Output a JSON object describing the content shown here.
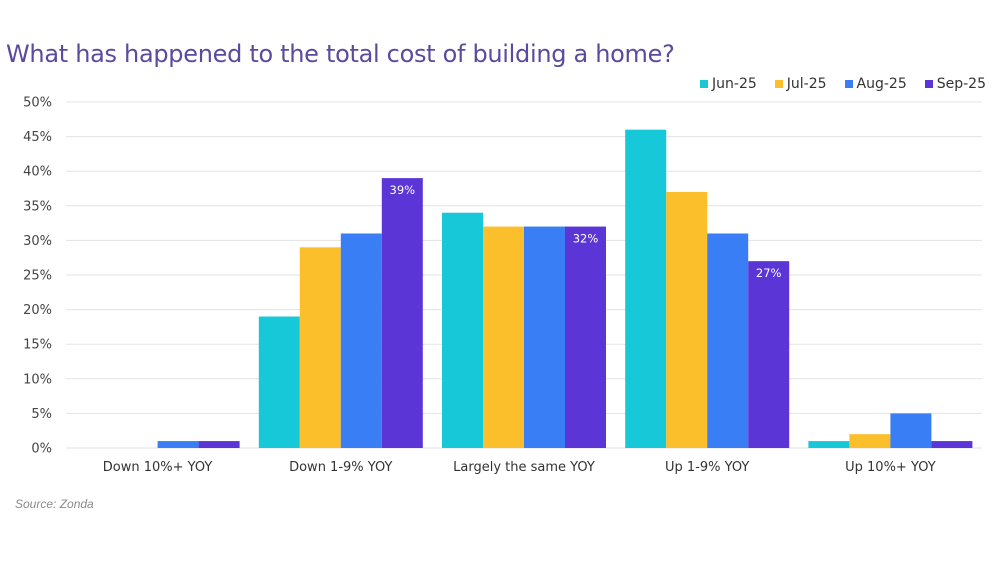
{
  "chart_data": {
    "type": "bar",
    "title": "What has happened to the total cost of building a home?",
    "xlabel": "",
    "ylabel": "",
    "ylim": [
      0,
      50
    ],
    "yticks": [
      "0%",
      "5%",
      "10%",
      "15%",
      "20%",
      "25%",
      "30%",
      "35%",
      "40%",
      "45%",
      "50%"
    ],
    "ytick_values": [
      0,
      5,
      10,
      15,
      20,
      25,
      30,
      35,
      40,
      45,
      50
    ],
    "grid": true,
    "legend_position": "top-right",
    "categories": [
      "Down 10%+ YOY",
      "Down 1-9% YOY",
      "Largely the same YOY",
      "Up 1-9% YOY",
      "Up 10%+ YOY"
    ],
    "series": [
      {
        "name": "Jun-25",
        "color": "#17c8d8",
        "values": [
          0,
          19,
          34,
          46,
          1
        ]
      },
      {
        "name": "Jul-25",
        "color": "#fbbf2c",
        "values": [
          0,
          29,
          32,
          37,
          2
        ]
      },
      {
        "name": "Aug-25",
        "color": "#3a7ef5",
        "values": [
          1,
          31,
          32,
          31,
          5
        ]
      },
      {
        "name": "Sep-25",
        "color": "#5b35d5",
        "values": [
          1,
          39,
          32,
          27,
          1
        ]
      }
    ],
    "data_labels": [
      {
        "series": "Sep-25",
        "category": "Down 1-9% YOY",
        "text": "39%"
      },
      {
        "series": "Sep-25",
        "category": "Largely the same YOY",
        "text": "32%"
      },
      {
        "series": "Sep-25",
        "category": "Up 1-9% YOY",
        "text": "27%"
      }
    ],
    "source": "Source: Zonda"
  }
}
